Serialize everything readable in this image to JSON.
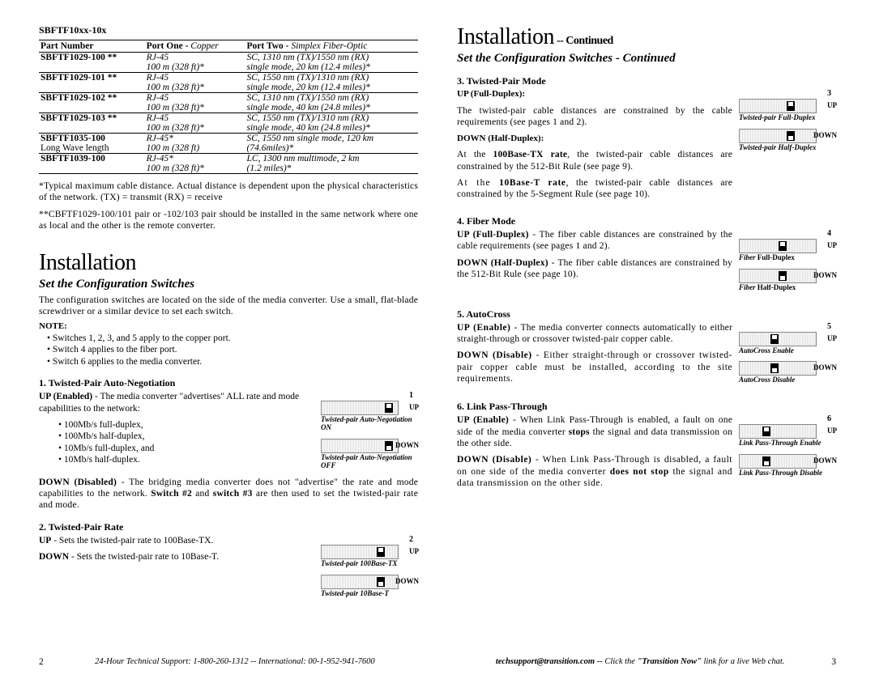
{
  "left": {
    "model": "SBFTF10xx-10x",
    "table": {
      "headers": {
        "part": "Part Number",
        "port1": "Port One -",
        "port1_desc": " Copper",
        "port2": "Port Two -",
        "port2_desc": " Simplex Fiber-Optic"
      },
      "rows": [
        {
          "pn": "SBFTF1029-100 **",
          "p1a": "RJ-45",
          "p1b": "100 m (328 ft)*",
          "p2a": "SC, 1310 nm (TX)/1550 nm (RX)",
          "p2b": "single mode, 20 km (12.4 miles)*"
        },
        {
          "pn": "SBFTF1029-101 **",
          "p1a": "RJ-45",
          "p1b": "100 m (328 ft)*",
          "p2a": "SC, 1550 nm (TX)/1310 nm (RX)",
          "p2b": "single mode, 20 km (12.4 miles)*"
        },
        {
          "pn": "SBFTF1029-102 **",
          "p1a": "RJ-45",
          "p1b": "100 m (328 ft)*",
          "p2a": "SC, 1310 nm (TX)/1550 nm (RX)",
          "p2b": "single mode, 40 km (24.8 miles)*"
        },
        {
          "pn": "SBFTF1029-103 **",
          "p1a": "RJ-45",
          "p1b": "100 m (328 ft)*",
          "p2a": "SC, 1550 nm (TX)/1310 nm (RX)",
          "p2b": "single mode, 40 km (24.8 miles)*"
        },
        {
          "pn": "SBFTF1035-100",
          "pn_sub": "Long Wave length",
          "p1a": "RJ-45*",
          "p1b": "100 m (328 ft)",
          "p2a": "SC, 1550 nm single mode, 120 km",
          "p2b": "(74.6miles)*"
        },
        {
          "pn": "SBFTF1039-100",
          "p1a": "RJ-45*",
          "p1b": "100 m (328 ft)*",
          "p2a": "LC, 1300 nm multimode, 2 km",
          "p2b": "(1.2 miles)*"
        }
      ]
    },
    "footnote1": "*Typical maximum cable distance.  Actual distance is dependent upon the physical characteristics of the network. (TX) = transmit   (RX) = receive",
    "footnote2": "**CBFTF1029-100/101 pair or -102/103 pair should be installed in the same network where one as local and the other is the remote converter.",
    "h1": "Installation",
    "h2": "Set the Configuration Switches",
    "intro": "The configuration switches are located on the side of the media converter.  Use a small, flat-blade screwdriver or a similar device to set each switch.",
    "note_label": "NOTE:",
    "notes": [
      "Switches 1, 2, 3, and 5 apply to the copper port.",
      "Switch 4 applies to the fiber port.",
      "Switch 6 applies to the media converter."
    ],
    "sec1": {
      "title": "1.  Twisted-Pair Auto-Negotiation",
      "up_lead": "UP (Enabled)",
      "up_text": " - The media converter \"advertises\" ALL rate and mode capabilities to the network:",
      "bullets": [
        "100Mb/s full-duplex,",
        "100Mb/s half-duplex,",
        "10Mb/s full-duplex, and",
        "10Mb/s half-duplex."
      ],
      "down_lead": "DOWN (Disabled)",
      "down_text": " - The bridging media converter does not \"advertise\" the rate and mode capabilities to the network. ",
      "down_text_bold": "Switch #2",
      "down_text_mid": " and ",
      "down_text_bold2": "switch #3",
      "down_text_end": " are then used to set the twisted-pair rate and mode.",
      "sw_num": "1",
      "cap_up": "Twisted-pair Auto-Negotiation ON",
      "cap_down": "Twisted-pair Auto-Negotiation OFF"
    },
    "sec2": {
      "title": "2.  Twisted-Pair Rate",
      "up_lead": "UP",
      "up_text": " - Sets the twisted-pair rate to 100Base-TX.",
      "down_lead": "DOWN",
      "down_text": " - Sets the twisted-pair rate to 10Base-T.",
      "sw_num": "2",
      "cap_up": "Twisted-pair 100Base-TX",
      "cap_down": "Twisted-pair 10Base-T"
    },
    "footer_page": "2",
    "footer_text": "24-Hour Technical Support: 1-800-260-1312 -- International: 00-1-952-941-7600"
  },
  "right": {
    "h1": "Installation",
    "h1_cont": " -- Continued",
    "h2": "Set the Configuration Switches - Continued",
    "sec3": {
      "title": "3.  Twisted-Pair Mode",
      "up_label": "UP (Full-Duplex):",
      "up_text": "The twisted-pair cable distances are constrained by the cable requirements (see pages 1 and 2).",
      "down_label": "DOWN (Half-Duplex):",
      "down_text1a": "At the ",
      "down_text1b": "100Base-TX rate",
      "down_text1c": ", the twisted-pair cable distances are constrained by the 512-Bit Rule (see page 9).",
      "down_text2a": "At the ",
      "down_text2b": "10Base-T rate",
      "down_text2c": ", the twisted-pair cable distances are constrained by the 5-Segment Rule (see page 10).",
      "sw_num": "3",
      "cap_up": "Twisted-pair Full-Duplex",
      "cap_down": "Twisted-pair Half-Duplex"
    },
    "sec4": {
      "title": "4.  Fiber Mode",
      "up_lead": "UP (Full-Duplex)",
      "up_text": " - The fiber cable distances are constrained by the cable requirements (see pages 1 and 2).",
      "down_lead": "DOWN (Half-Duplex)",
      "down_text": " - The fiber cable distances are constrained by the 512-Bit Rule (see page 10).",
      "sw_num": "4",
      "cap_up_pre": "Fiber ",
      "cap_up": "Full-Duplex",
      "cap_down_pre": "Fiber ",
      "cap_down": "Half-Duplex"
    },
    "sec5": {
      "title": "5.  AutoCross",
      "up_lead": "UP (Enable)",
      "up_text": " - The media converter connects automatically to either straight-through or crossover twisted-pair copper cable.",
      "down_lead": "DOWN (Disable)",
      "down_text": " - Either straight-through or crossover twisted-pair copper cable must be installed, according to the site requirements.",
      "sw_num": "5",
      "cap_up": "AutoCross Enable",
      "cap_down": "AutoCross Disable"
    },
    "sec6": {
      "title": "6.  Link Pass-Through",
      "up_lead": "UP (Enable)",
      "up_text_a": " - When Link Pass-Through is enabled, a fault on one side of the media converter ",
      "up_text_b": "stops",
      "up_text_c": " the signal and data transmission on the other side.",
      "down_lead": "DOWN (Disable)",
      "down_text_a": " - When Link Pass-Through is disabled, a fault on one side of the media converter ",
      "down_text_b": "does not stop",
      "down_text_c": " the signal and data transmission on the other side.",
      "sw_num": "6",
      "cap_up": "Link Pass-Through Enable",
      "cap_down": "Link Pass-Through Disable"
    },
    "footer_text_a": "techsupport@transition.com -- ",
    "footer_text_b": "Click the ",
    "footer_text_c": "\"Transition Now\"",
    "footer_text_d": " link for a live Web chat.",
    "footer_page": "3"
  }
}
